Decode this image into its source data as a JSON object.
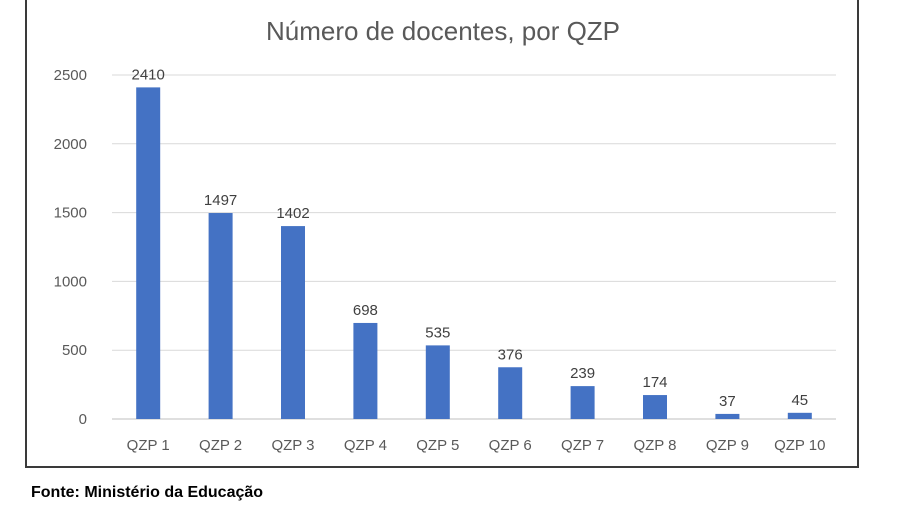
{
  "chart_data": {
    "type": "bar",
    "title": "Número de docentes, por QZP",
    "xlabel": "",
    "ylabel": "",
    "categories": [
      "QZP 1",
      "QZP 2",
      "QZP 3",
      "QZP 4",
      "QZP 5",
      "QZP 6",
      "QZP 7",
      "QZP 8",
      "QZP 9",
      "QZP 10"
    ],
    "values": [
      2410,
      1497,
      1402,
      698,
      535,
      376,
      239,
      174,
      37,
      45
    ],
    "ylim": [
      0,
      2500
    ],
    "yticks": [
      0,
      500,
      1000,
      1500,
      2000,
      2500
    ],
    "grid": true,
    "legend": "none",
    "bar_color": "#4472c4"
  },
  "source": "Fonte: Ministério da Educação"
}
